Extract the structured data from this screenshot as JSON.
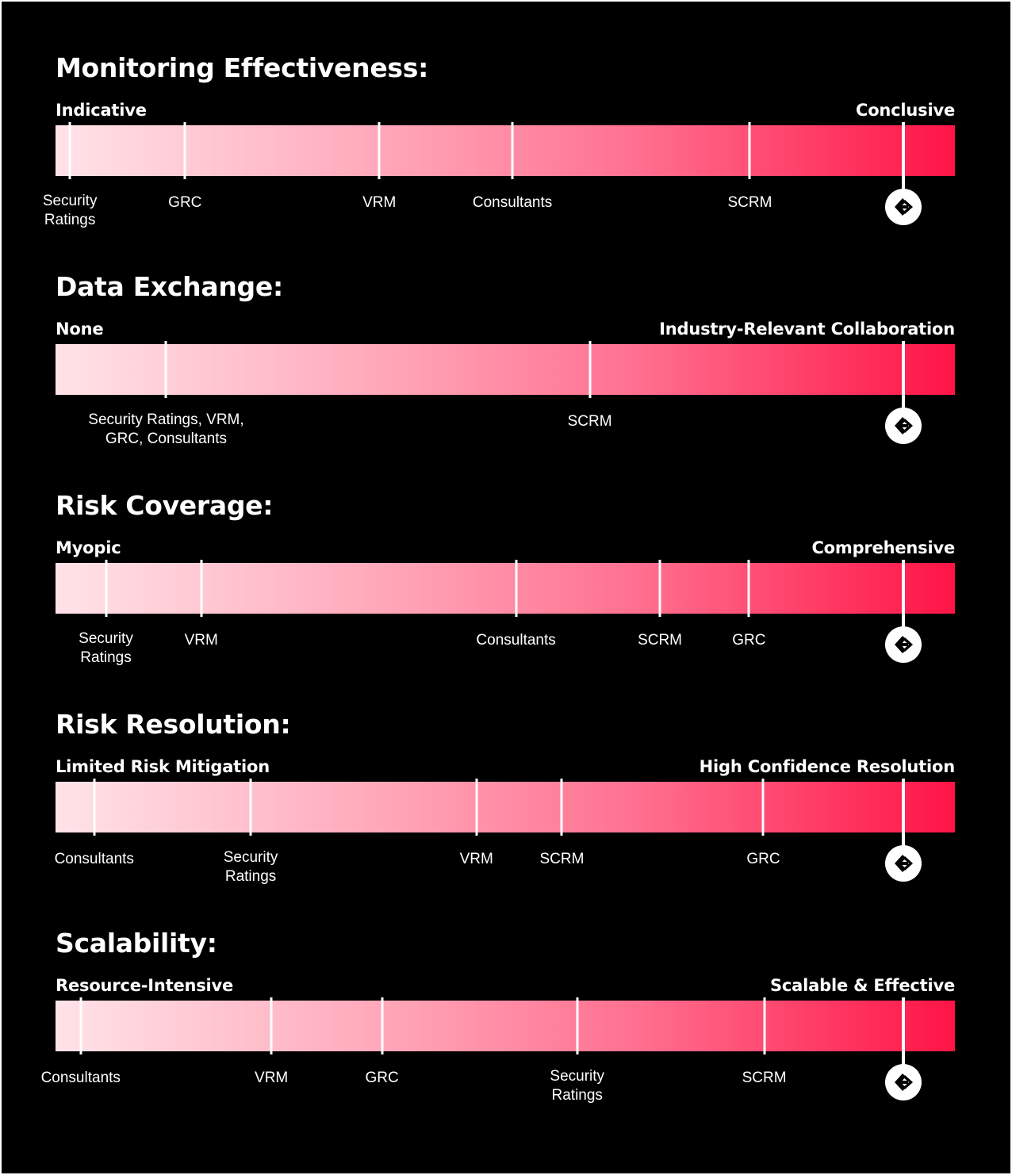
{
  "chart_data": [
    {
      "type": "scale",
      "title": "Monitoring Effectiveness:",
      "min_label": "Indicative",
      "max_label": "Conclusive",
      "points": [
        {
          "label": "Security\nRatings",
          "value": 0.016
        },
        {
          "label": "GRC",
          "value": 0.144
        },
        {
          "label": "VRM",
          "value": 0.36
        },
        {
          "label": "Consultants",
          "value": 0.508
        },
        {
          "label": "SCRM",
          "value": 0.772
        }
      ],
      "marker": {
        "icon": "brand-logo-icon",
        "value": 0.943
      }
    },
    {
      "type": "scale",
      "title": "Data Exchange:",
      "min_label": "None",
      "max_label": "Industry-Relevant Collaboration",
      "points": [
        {
          "label": "Security Ratings, VRM,\nGRC, Consultants",
          "value": 0.123
        },
        {
          "label": "SCRM",
          "value": 0.594
        }
      ],
      "marker": {
        "icon": "brand-logo-icon",
        "value": 0.943
      }
    },
    {
      "type": "scale",
      "title": "Risk Coverage:",
      "min_label": "Myopic",
      "max_label": "Comprehensive",
      "points": [
        {
          "label": "Security\nRatings",
          "value": 0.056
        },
        {
          "label": "VRM",
          "value": 0.162
        },
        {
          "label": "Consultants",
          "value": 0.512
        },
        {
          "label": "SCRM",
          "value": 0.672
        },
        {
          "label": "GRC",
          "value": 0.771
        }
      ],
      "marker": {
        "icon": "brand-logo-icon",
        "value": 0.943
      }
    },
    {
      "type": "scale",
      "title": "Risk Resolution:",
      "min_label": "Limited Risk Mitigation",
      "max_label": "High Confidence Resolution",
      "points": [
        {
          "label": "Consultants",
          "value": 0.043
        },
        {
          "label": "Security\nRatings",
          "value": 0.217
        },
        {
          "label": "VRM",
          "value": 0.468
        },
        {
          "label": "SCRM",
          "value": 0.563
        },
        {
          "label": "GRC",
          "value": 0.787
        }
      ],
      "marker": {
        "icon": "brand-logo-icon",
        "value": 0.943
      }
    },
    {
      "type": "scale",
      "title": "Scalability:",
      "min_label": "Resource-Intensive",
      "max_label": "Scalable & Effective",
      "points": [
        {
          "label": "Consultants",
          "value": 0.028
        },
        {
          "label": "VRM",
          "value": 0.24
        },
        {
          "label": "GRC",
          "value": 0.363
        },
        {
          "label": "Security\nRatings",
          "value": 0.58
        },
        {
          "label": "SCRM",
          "value": 0.788
        }
      ],
      "marker": {
        "icon": "brand-logo-icon",
        "value": 0.943
      }
    }
  ],
  "colors": {
    "background": "#000000",
    "bar_start": "#ffe3e8",
    "bar_end": "#ff1446",
    "tick": "#ffffff",
    "text": "#ffffff"
  }
}
